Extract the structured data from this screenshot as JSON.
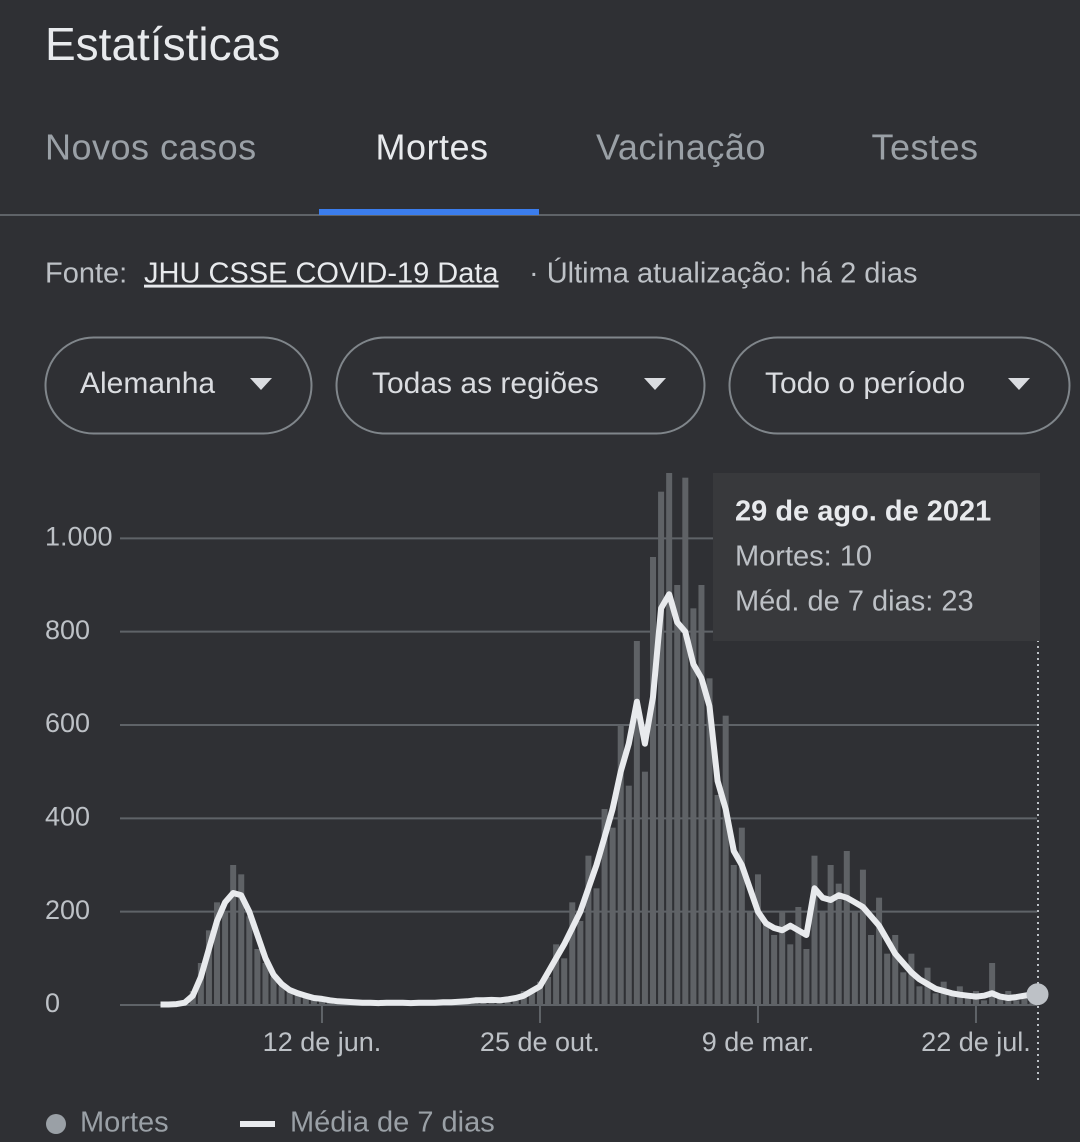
{
  "header": {
    "title": "Estatísticas",
    "tabs": [
      "Novos casos",
      "Mortes",
      "Vacinação",
      "Testes"
    ],
    "source_prefix": "Fonte:",
    "source_link": "JHU CSSE COVID-19 Data",
    "source_update": "· Última atualização: há 2 dias",
    "filters": [
      "Alemanha",
      "Todas as regiões",
      "Todo o período"
    ]
  },
  "tooltip": {
    "date": "29 de ago. de 2021",
    "deaths": "Mortes: 10",
    "average": "Méd. de 7 dias: 23"
  },
  "chart_data": {
    "type": "combo",
    "categories": [
      null,
      null,
      null,
      null,
      null,
      null,
      null,
      null,
      null,
      null,
      null,
      null,
      null,
      null,
      null,
      null,
      null,
      null,
      null,
      null,
      "12 de jun.",
      null,
      null,
      null,
      null,
      null,
      null,
      null,
      null,
      null,
      null,
      null,
      null,
      null,
      null,
      null,
      null,
      null,
      null,
      null,
      null,
      null,
      null,
      null,
      null,
      null,
      null,
      "25 de out.",
      null,
      null,
      null,
      null,
      null,
      null,
      null,
      null,
      null,
      null,
      null,
      null,
      null,
      null,
      null,
      null,
      null,
      null,
      null,
      null,
      null,
      null,
      null,
      null,
      null,
      null,
      "9 de mar.",
      null,
      null,
      null,
      null,
      null,
      null,
      null,
      null,
      null,
      null,
      null,
      null,
      null,
      null,
      null,
      null,
      null,
      null,
      null,
      null,
      null,
      null,
      null,
      null,
      null,
      null,
      "22 de jul.",
      null,
      null,
      null,
      null,
      null,
      null,
      null
    ],
    "series": [
      {
        "name": "Mortes",
        "type": "bar",
        "color": "#5f6266",
        "values": [
          0,
          2,
          3,
          8,
          30,
          90,
          160,
          220,
          200,
          300,
          280,
          190,
          120,
          90,
          60,
          40,
          30,
          30,
          15,
          20,
          10,
          12,
          6,
          8,
          4,
          6,
          3,
          5,
          4,
          7,
          3,
          6,
          4,
          7,
          5,
          8,
          4,
          9,
          6,
          12,
          8,
          14,
          12,
          18,
          10,
          30,
          25,
          50,
          60,
          130,
          100,
          220,
          180,
          320,
          250,
          420,
          380,
          600,
          470,
          780,
          500,
          960,
          1100,
          1140,
          900,
          1130,
          850,
          900,
          700,
          450,
          620,
          300,
          380,
          200,
          280,
          180,
          150,
          200,
          130,
          210,
          120,
          320,
          200,
          300,
          260,
          330,
          200,
          290,
          150,
          230,
          110,
          150,
          70,
          110,
          40,
          80,
          25,
          50,
          20,
          40,
          15,
          30,
          10,
          90,
          15,
          30,
          10,
          25,
          10
        ]
      },
      {
        "name": "Média de 7 dias",
        "type": "line",
        "color": "#e8eaed",
        "values": [
          1,
          1,
          2,
          5,
          20,
          60,
          120,
          180,
          220,
          240,
          235,
          200,
          150,
          100,
          65,
          45,
          32,
          25,
          20,
          15,
          13,
          10,
          8,
          7,
          6,
          5,
          5,
          4,
          5,
          5,
          5,
          4,
          5,
          5,
          5,
          6,
          6,
          7,
          8,
          10,
          10,
          11,
          10,
          12,
          15,
          20,
          30,
          40,
          70,
          100,
          130,
          165,
          200,
          250,
          300,
          360,
          420,
          500,
          560,
          650,
          560,
          660,
          850,
          880,
          820,
          800,
          730,
          700,
          640,
          480,
          420,
          330,
          300,
          250,
          200,
          175,
          165,
          160,
          170,
          160,
          150,
          250,
          230,
          225,
          235,
          230,
          220,
          210,
          190,
          170,
          140,
          110,
          90,
          70,
          55,
          45,
          35,
          30,
          25,
          22,
          20,
          18,
          20,
          25,
          18,
          15,
          17,
          20,
          23
        ]
      }
    ],
    "ylim": [
      0,
      1140
    ],
    "yticks": [
      0,
      200,
      400,
      600,
      800,
      {
        "value": 1000,
        "label": "1.000"
      }
    ],
    "grid": true
  }
}
